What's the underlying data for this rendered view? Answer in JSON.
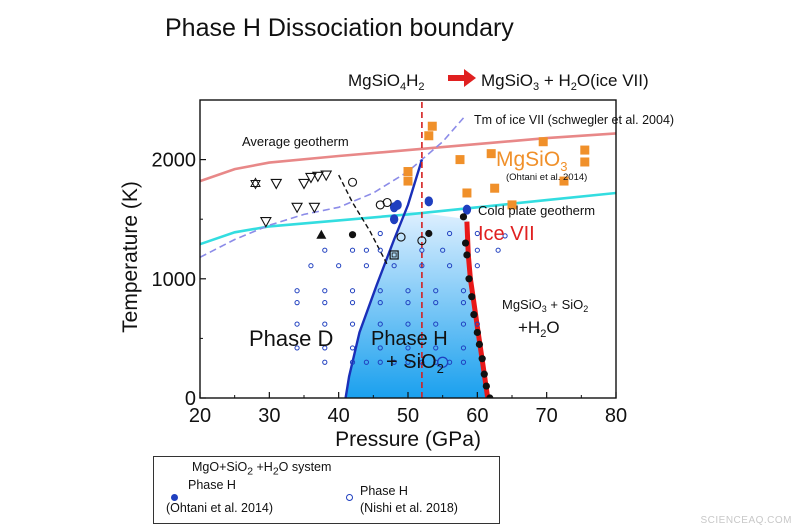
{
  "chart_data": {
    "type": "scatter",
    "title": "Phase H Dissociation boundary",
    "reaction": {
      "left": "MgSiO4H2",
      "left_parts": [
        "MgSiO",
        "4",
        "H",
        "2"
      ],
      "right": "MgSiO3 + H2O(ice VII)",
      "right_parts": [
        "MgSiO",
        "3",
        " + H",
        "2",
        "O(ice VII)"
      ],
      "arrow_color": "#e02020"
    },
    "xlabel": "Pressure (GPa)",
    "ylabel": "Temperature (K)",
    "xlim": [
      20,
      80
    ],
    "ylim": [
      0,
      2500
    ],
    "xticks": [
      20,
      30,
      40,
      50,
      60,
      70,
      80
    ],
    "yticks": [
      0,
      1000,
      2000
    ],
    "xtick_labels": [
      "20",
      "30",
      "40",
      "50",
      "60",
      "70",
      "80"
    ],
    "ytick_labels": [
      "0",
      "1000",
      "2000"
    ],
    "labels": {
      "average_geotherm": "Average geotherm",
      "cold_plate": "Cold plate geotherm",
      "tm_ice": "Tm of ice VII (schwegler et al. 2004)",
      "mgsio3": "MgSiO",
      "mgsio3_sub": "3",
      "ohtani_ref": "(Ohtani et al. 2014)",
      "ice_vii": "Ice VII",
      "phase_d": "Phase D",
      "phase_h": "Phase H",
      "sio2": "+ SiO",
      "sio2_sub": "2",
      "products1": "MgSiO",
      "products1_sub": "3",
      "products1_rest": " + SiO",
      "products1_sub2": "2",
      "products2": "+H",
      "products2_sub": "2",
      "products2_rest": "O"
    },
    "colors": {
      "average_geotherm": "#e88888",
      "cold_plate": "#33dde0",
      "tm_ice": "#8c8ce8",
      "phase_boundary": "#1a2fb8",
      "dissociation": "#e81818",
      "dashed_red": "#d42020",
      "region_top": "#dff0ff",
      "region_bottom": "#1aa0ee",
      "orange": "#f0902a",
      "blue": "#1f3fbf",
      "black": "#111111",
      "mgsio3_label": "#f0902a",
      "ice_label": "#e02020"
    },
    "series": [
      {
        "name": "Average geotherm",
        "kind": "line",
        "points": [
          [
            20,
            1820
          ],
          [
            25,
            1920
          ],
          [
            30,
            1975
          ],
          [
            40,
            2030
          ],
          [
            50,
            2080
          ],
          [
            60,
            2130
          ],
          [
            70,
            2180
          ],
          [
            80,
            2220
          ]
        ]
      },
      {
        "name": "Cold plate geotherm",
        "kind": "line",
        "points": [
          [
            20,
            1290
          ],
          [
            25,
            1390
          ],
          [
            30,
            1440
          ],
          [
            40,
            1490
          ],
          [
            50,
            1540
          ],
          [
            60,
            1600
          ],
          [
            70,
            1660
          ],
          [
            80,
            1720
          ]
        ]
      },
      {
        "name": "Tm of ice VII (schwegler et al. 2004)",
        "kind": "dashed",
        "points": [
          [
            20,
            1180
          ],
          [
            25,
            1330
          ],
          [
            30,
            1450
          ],
          [
            35,
            1540
          ],
          [
            40,
            1600
          ],
          [
            45,
            1720
          ],
          [
            50,
            1900
          ],
          [
            55,
            2150
          ],
          [
            58,
            2350
          ]
        ]
      },
      {
        "name": "Phase D / Phase H boundary",
        "kind": "line",
        "points": [
          [
            41,
            0
          ],
          [
            41.5,
            180
          ],
          [
            43,
            550
          ],
          [
            45.5,
            950
          ],
          [
            48,
            1330
          ],
          [
            50,
            1620
          ],
          [
            52,
            2000
          ]
        ]
      },
      {
        "name": "Phase H dissociation boundary",
        "kind": "thick",
        "points": [
          [
            58.5,
            1480
          ],
          [
            58.7,
            1200
          ],
          [
            59,
            1000
          ],
          [
            59.5,
            800
          ],
          [
            60,
            600
          ],
          [
            60.5,
            400
          ],
          [
            61,
            200
          ],
          [
            61.5,
            0
          ]
        ]
      },
      {
        "name": "Phase D stability (dashed)",
        "kind": "black-dashed",
        "points": [
          [
            40,
            1870
          ],
          [
            42,
            1640
          ],
          [
            44.5,
            1400
          ],
          [
            47,
            1120
          ]
        ]
      },
      {
        "name": "Pressure marker",
        "kind": "red-dashed",
        "points": [
          [
            52,
            0
          ],
          [
            52,
            2500
          ]
        ]
      }
    ],
    "points": {
      "orange_squares": [
        [
          50,
          1900
        ],
        [
          50,
          1820
        ],
        [
          53,
          2200
        ],
        [
          53.5,
          2280
        ],
        [
          57.5,
          2000
        ],
        [
          58.5,
          1720
        ],
        [
          62,
          2050
        ],
        [
          62.5,
          1760
        ],
        [
          65,
          1620
        ],
        [
          69.5,
          2150
        ],
        [
          72.5,
          1820
        ],
        [
          75.5,
          2080
        ],
        [
          75.5,
          1980
        ]
      ],
      "blue_filled": [
        [
          48,
          1600
        ],
        [
          48.5,
          1620
        ],
        [
          53,
          1650
        ],
        [
          48,
          1500
        ],
        [
          58.5,
          1580
        ]
      ],
      "black_filled": [
        [
          58,
          1520
        ],
        [
          58.3,
          1300
        ],
        [
          58.5,
          1200
        ],
        [
          58.8,
          1000
        ],
        [
          59.2,
          850
        ],
        [
          59.5,
          700
        ],
        [
          60,
          550
        ],
        [
          60.3,
          450
        ],
        [
          60.7,
          330
        ],
        [
          61,
          200
        ],
        [
          61.3,
          100
        ],
        [
          61.8,
          0
        ],
        [
          42,
          1370
        ],
        [
          53,
          1380
        ]
      ],
      "black_triangle": [
        [
          37.5,
          1370
        ]
      ],
      "open_triangles": [
        [
          29.5,
          1480
        ],
        [
          31,
          1800
        ],
        [
          34,
          1600
        ],
        [
          35,
          1800
        ],
        [
          36,
          1850
        ],
        [
          36.5,
          1600
        ],
        [
          37,
          1860
        ],
        [
          38.2,
          1870
        ]
      ],
      "open_circles": [
        [
          42,
          1810
        ],
        [
          46,
          1620
        ],
        [
          47,
          1640
        ],
        [
          49,
          1350
        ],
        [
          52,
          1320
        ]
      ],
      "star": [
        [
          28,
          1800
        ]
      ],
      "open_square": [
        [
          48,
          1200
        ]
      ],
      "blue_open": [
        [
          38,
          300
        ],
        [
          42,
          300
        ],
        [
          44,
          300
        ],
        [
          46,
          300
        ],
        [
          48,
          300
        ],
        [
          50,
          300
        ],
        [
          52,
          300
        ],
        [
          54,
          300
        ],
        [
          56,
          300
        ],
        [
          58,
          300
        ],
        [
          34,
          420
        ],
        [
          38,
          420
        ],
        [
          42,
          420
        ],
        [
          46,
          420
        ],
        [
          50,
          420
        ],
        [
          54,
          420
        ],
        [
          58,
          420
        ],
        [
          34,
          620
        ],
        [
          38,
          620
        ],
        [
          42,
          620
        ],
        [
          46,
          620
        ],
        [
          50,
          620
        ],
        [
          54,
          620
        ],
        [
          58,
          620
        ],
        [
          60,
          620
        ],
        [
          34,
          800
        ],
        [
          38,
          800
        ],
        [
          42,
          800
        ],
        [
          46,
          800
        ],
        [
          50,
          800
        ],
        [
          54,
          800
        ],
        [
          58,
          800
        ],
        [
          34,
          900
        ],
        [
          38,
          900
        ],
        [
          42,
          900
        ],
        [
          46,
          900
        ],
        [
          50,
          900
        ],
        [
          54,
          900
        ],
        [
          58,
          900
        ],
        [
          36,
          1110
        ],
        [
          40,
          1110
        ],
        [
          44,
          1110
        ],
        [
          48,
          1110
        ],
        [
          52,
          1110
        ],
        [
          56,
          1110
        ],
        [
          60,
          1110
        ],
        [
          38,
          1240
        ],
        [
          42,
          1240
        ],
        [
          44,
          1240
        ],
        [
          46,
          1240
        ],
        [
          52,
          1240
        ],
        [
          55,
          1240
        ],
        [
          60,
          1240
        ],
        [
          63,
          1240
        ],
        [
          46,
          1380
        ],
        [
          56,
          1380
        ],
        [
          60,
          1380
        ],
        [
          64,
          1360
        ]
      ],
      "phase_h_open_circle": [
        [
          55,
          300
        ]
      ]
    },
    "legend": {
      "system": "MgO+SiO",
      "system_sub": "2",
      "system_rest": " +H",
      "system_sub2": "2",
      "system_end": "O system",
      "phase_a": "Phase H",
      "ref_a": "(Ohtani et al. 2014)",
      "phase_b": "Phase H",
      "ref_b": "(Nishi et al. 2018)"
    }
  },
  "watermark": "SCIENCEAQ.COM"
}
